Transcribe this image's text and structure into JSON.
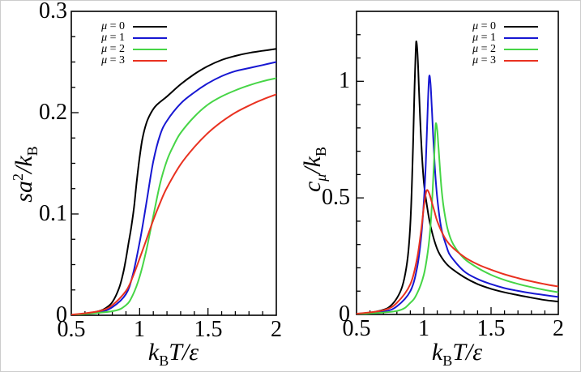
{
  "figure": {
    "background": "#ffffff",
    "border_color": "#cccccc",
    "text_color": "#000000"
  },
  "chart_data": [
    {
      "id": "entropy-panel",
      "type": "line",
      "title": "",
      "xlabel_parts": [
        {
          "t": "k"
        },
        {
          "t": "B"
        },
        {
          "t": "T/ε"
        }
      ],
      "ylabel_parts": [
        {
          "t": "sa"
        },
        {
          "t": "2"
        },
        {
          "t": "/k"
        },
        {
          "t": "B"
        }
      ],
      "xlim": [
        0.5,
        2
      ],
      "ylim": [
        0,
        0.3
      ],
      "x_minor_step": 0.1,
      "y_minor_step": 0.025,
      "grid": "off",
      "legend_position": "top-left",
      "xticks": [
        {
          "v": 0.5,
          "label": "0.5"
        },
        {
          "v": 1,
          "label": "1"
        },
        {
          "v": 1.5,
          "label": "1.5"
        },
        {
          "v": 2,
          "label": "2"
        }
      ],
      "yticks": [
        {
          "v": 0,
          "label": "0"
        },
        {
          "v": 0.1,
          "label": "0.1"
        },
        {
          "v": 0.2,
          "label": "0.2"
        },
        {
          "v": 0.3,
          "label": "0.3"
        }
      ],
      "series": [
        {
          "name": "μ = 0",
          "color": "#000000",
          "points": [
            [
              0.5,
              0.0005
            ],
            [
              0.6,
              0.0015
            ],
            [
              0.7,
              0.004
            ],
            [
              0.75,
              0.007
            ],
            [
              0.8,
              0.013
            ],
            [
              0.85,
              0.027
            ],
            [
              0.88,
              0.042
            ],
            [
              0.9,
              0.056
            ],
            [
              0.92,
              0.072
            ],
            [
              0.94,
              0.088
            ],
            [
              0.96,
              0.108
            ],
            [
              0.98,
              0.134
            ],
            [
              1.0,
              0.156
            ],
            [
              1.02,
              0.174
            ],
            [
              1.05,
              0.19
            ],
            [
              1.08,
              0.199
            ],
            [
              1.12,
              0.207
            ],
            [
              1.2,
              0.216
            ],
            [
              1.3,
              0.228
            ],
            [
              1.4,
              0.238
            ],
            [
              1.5,
              0.246
            ],
            [
              1.6,
              0.252
            ],
            [
              1.7,
              0.256
            ],
            [
              1.8,
              0.259
            ],
            [
              1.9,
              0.261
            ],
            [
              2.0,
              0.263
            ]
          ]
        },
        {
          "name": "μ = 1",
          "color": "#1717d2",
          "points": [
            [
              0.5,
              0.0003
            ],
            [
              0.7,
              0.003
            ],
            [
              0.8,
              0.008
            ],
            [
              0.9,
              0.021
            ],
            [
              0.95,
              0.04
            ],
            [
              1.0,
              0.072
            ],
            [
              1.03,
              0.095
            ],
            [
              1.06,
              0.12
            ],
            [
              1.1,
              0.152
            ],
            [
              1.15,
              0.178
            ],
            [
              1.2,
              0.192
            ],
            [
              1.3,
              0.209
            ],
            [
              1.4,
              0.22
            ],
            [
              1.5,
              0.229
            ],
            [
              1.6,
              0.236
            ],
            [
              1.7,
              0.241
            ],
            [
              1.8,
              0.244
            ],
            [
              1.9,
              0.247
            ],
            [
              2.0,
              0.25
            ]
          ]
        },
        {
          "name": "μ = 2",
          "color": "#46d546",
          "points": [
            [
              0.5,
              0.0002
            ],
            [
              0.8,
              0.004
            ],
            [
              0.9,
              0.01
            ],
            [
              0.95,
              0.02
            ],
            [
              1.0,
              0.038
            ],
            [
              1.05,
              0.065
            ],
            [
              1.1,
              0.098
            ],
            [
              1.15,
              0.13
            ],
            [
              1.2,
              0.153
            ],
            [
              1.25,
              0.168
            ],
            [
              1.3,
              0.18
            ],
            [
              1.4,
              0.196
            ],
            [
              1.5,
              0.208
            ],
            [
              1.6,
              0.216
            ],
            [
              1.7,
              0.222
            ],
            [
              1.8,
              0.227
            ],
            [
              1.9,
              0.231
            ],
            [
              2.0,
              0.234
            ]
          ]
        },
        {
          "name": "μ = 3",
          "color": "#e93120",
          "points": [
            [
              0.5,
              0.0005
            ],
            [
              0.7,
              0.004
            ],
            [
              0.8,
              0.01
            ],
            [
              0.9,
              0.024
            ],
            [
              0.95,
              0.038
            ],
            [
              1.0,
              0.056
            ],
            [
              1.05,
              0.075
            ],
            [
              1.1,
              0.094
            ],
            [
              1.15,
              0.111
            ],
            [
              1.2,
              0.126
            ],
            [
              1.3,
              0.149
            ],
            [
              1.4,
              0.166
            ],
            [
              1.5,
              0.18
            ],
            [
              1.6,
              0.191
            ],
            [
              1.7,
              0.2
            ],
            [
              1.8,
              0.207
            ],
            [
              1.9,
              0.213
            ],
            [
              2.0,
              0.218
            ]
          ]
        }
      ]
    },
    {
      "id": "specific-heat-panel",
      "type": "line",
      "title": "",
      "xlabel_parts": [
        {
          "t": "k"
        },
        {
          "t": "B"
        },
        {
          "t": "T/ε"
        }
      ],
      "ylabel_parts": [
        {
          "t": "c"
        },
        {
          "t": "μ"
        },
        {
          "t": "/k"
        },
        {
          "t": "B"
        }
      ],
      "xlim": [
        0.5,
        2
      ],
      "ylim": [
        0,
        1.3
      ],
      "x_minor_step": 0.1,
      "y_minor_step": 0.1,
      "grid": "off",
      "legend_position": "top-right",
      "xticks": [
        {
          "v": 0.5,
          "label": "0.5"
        },
        {
          "v": 1,
          "label": "1"
        },
        {
          "v": 1.5,
          "label": "1.5"
        },
        {
          "v": 2,
          "label": "2"
        }
      ],
      "yticks": [
        {
          "v": 0,
          "label": "0"
        },
        {
          "v": 0.5,
          "label": "0.5"
        },
        {
          "v": 1,
          "label": "1"
        }
      ],
      "series": [
        {
          "name": "μ = 0",
          "color": "#000000",
          "points": [
            [
              0.5,
              0.003
            ],
            [
              0.6,
              0.008
            ],
            [
              0.7,
              0.02
            ],
            [
              0.75,
              0.035
            ],
            [
              0.8,
              0.07
            ],
            [
              0.84,
              0.12
            ],
            [
              0.87,
              0.2
            ],
            [
              0.89,
              0.3
            ],
            [
              0.905,
              0.45
            ],
            [
              0.92,
              0.72
            ],
            [
              0.93,
              0.95
            ],
            [
              0.94,
              1.13
            ],
            [
              0.945,
              1.17
            ],
            [
              0.955,
              1.1
            ],
            [
              0.965,
              0.95
            ],
            [
              0.98,
              0.75
            ],
            [
              1.0,
              0.57
            ],
            [
              1.02,
              0.48
            ],
            [
              1.05,
              0.38
            ],
            [
              1.1,
              0.28
            ],
            [
              1.15,
              0.23
            ],
            [
              1.2,
              0.2
            ],
            [
              1.3,
              0.16
            ],
            [
              1.4,
              0.13
            ],
            [
              1.5,
              0.11
            ],
            [
              1.6,
              0.095
            ],
            [
              1.7,
              0.083
            ],
            [
              1.8,
              0.072
            ],
            [
              1.9,
              0.062
            ],
            [
              2.0,
              0.055
            ]
          ]
        },
        {
          "name": "μ = 1",
          "color": "#1717d2",
          "points": [
            [
              0.5,
              0.002
            ],
            [
              0.7,
              0.012
            ],
            [
              0.8,
              0.035
            ],
            [
              0.9,
              0.1
            ],
            [
              0.95,
              0.2
            ],
            [
              0.98,
              0.33
            ],
            [
              1.0,
              0.48
            ],
            [
              1.015,
              0.65
            ],
            [
              1.03,
              0.9
            ],
            [
              1.04,
              1.02
            ],
            [
              1.05,
              0.99
            ],
            [
              1.06,
              0.88
            ],
            [
              1.08,
              0.65
            ],
            [
              1.1,
              0.5
            ],
            [
              1.13,
              0.37
            ],
            [
              1.17,
              0.29
            ],
            [
              1.2,
              0.25
            ],
            [
              1.3,
              0.185
            ],
            [
              1.4,
              0.152
            ],
            [
              1.5,
              0.13
            ],
            [
              1.6,
              0.113
            ],
            [
              1.7,
              0.101
            ],
            [
              1.8,
              0.091
            ],
            [
              1.9,
              0.083
            ],
            [
              2.0,
              0.075
            ]
          ]
        },
        {
          "name": "μ = 2",
          "color": "#46d546",
          "points": [
            [
              0.5,
              0.001
            ],
            [
              0.8,
              0.015
            ],
            [
              0.9,
              0.05
            ],
            [
              0.95,
              0.09
            ],
            [
              1.0,
              0.17
            ],
            [
              1.03,
              0.27
            ],
            [
              1.05,
              0.38
            ],
            [
              1.07,
              0.58
            ],
            [
              1.085,
              0.78
            ],
            [
              1.09,
              0.82
            ],
            [
              1.1,
              0.79
            ],
            [
              1.11,
              0.71
            ],
            [
              1.13,
              0.55
            ],
            [
              1.15,
              0.45
            ],
            [
              1.18,
              0.36
            ],
            [
              1.22,
              0.3
            ],
            [
              1.3,
              0.24
            ],
            [
              1.4,
              0.2
            ],
            [
              1.5,
              0.17
            ],
            [
              1.6,
              0.148
            ],
            [
              1.7,
              0.131
            ],
            [
              1.8,
              0.117
            ],
            [
              1.9,
              0.105
            ],
            [
              2.0,
              0.095
            ]
          ]
        },
        {
          "name": "μ = 3",
          "color": "#e93120",
          "points": [
            [
              0.5,
              0.003
            ],
            [
              0.7,
              0.018
            ],
            [
              0.8,
              0.05
            ],
            [
              0.9,
              0.13
            ],
            [
              0.95,
              0.24
            ],
            [
              0.98,
              0.36
            ],
            [
              1.0,
              0.46
            ],
            [
              1.02,
              0.53
            ],
            [
              1.04,
              0.52
            ],
            [
              1.06,
              0.48
            ],
            [
              1.08,
              0.44
            ],
            [
              1.1,
              0.4
            ],
            [
              1.15,
              0.335
            ],
            [
              1.2,
              0.295
            ],
            [
              1.3,
              0.247
            ],
            [
              1.4,
              0.215
            ],
            [
              1.5,
              0.192
            ],
            [
              1.6,
              0.172
            ],
            [
              1.7,
              0.156
            ],
            [
              1.8,
              0.142
            ],
            [
              1.9,
              0.13
            ],
            [
              2.0,
              0.12
            ]
          ]
        }
      ]
    }
  ]
}
